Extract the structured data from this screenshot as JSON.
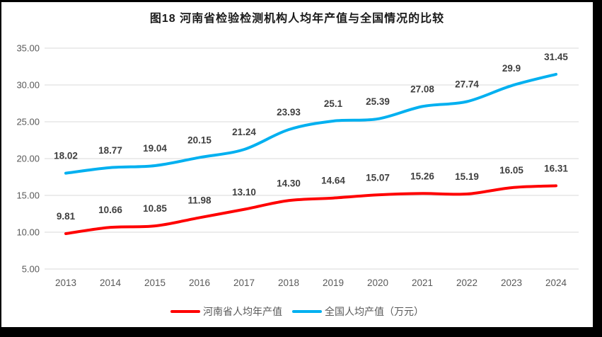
{
  "chart_data": {
    "type": "line",
    "title": "图18  河南省检验检测机构人均年产值与全国情况的比较",
    "categories": [
      "2013",
      "2014",
      "2015",
      "2016",
      "2017",
      "2018",
      "2019",
      "2020",
      "2021",
      "2022",
      "2023",
      "2024"
    ],
    "series": [
      {
        "name": "河南省人均年产值",
        "color": "#FF0000",
        "values": [
          9.81,
          10.66,
          10.85,
          11.98,
          13.1,
          14.3,
          14.64,
          15.07,
          15.26,
          15.19,
          16.05,
          16.31
        ],
        "labels": [
          "9.81",
          "10.66",
          "10.85",
          "11.98",
          "13.10",
          "14.30",
          "14.64",
          "15.07",
          "15.26",
          "15.19",
          "16.05",
          "16.31"
        ]
      },
      {
        "name": "全国人均产值（万元）",
        "color": "#00B0F0",
        "values": [
          18.02,
          18.77,
          19.04,
          20.15,
          21.24,
          23.93,
          25.1,
          25.39,
          27.08,
          27.74,
          29.9,
          31.45
        ],
        "labels": [
          "18.02",
          "18.77",
          "19.04",
          "20.15",
          "21.24",
          "23.93",
          "25.1",
          "25.39",
          "27.08",
          "27.74",
          "29.9",
          "31.45"
        ]
      }
    ],
    "ylim": [
      5,
      35
    ],
    "ytick_step": 5,
    "ytick_labels": [
      "5.00",
      "10.00",
      "15.00",
      "20.00",
      "25.00",
      "30.00",
      "35.00"
    ],
    "grid": true,
    "legend_position": "bottom"
  },
  "colors": {
    "frame": "#000000",
    "background": "#FFFFFF",
    "gridline": "#D9D9D9",
    "axis_text": "#595959",
    "data_label": "#3F3F3F",
    "title_text": "#1A1A1A"
  }
}
